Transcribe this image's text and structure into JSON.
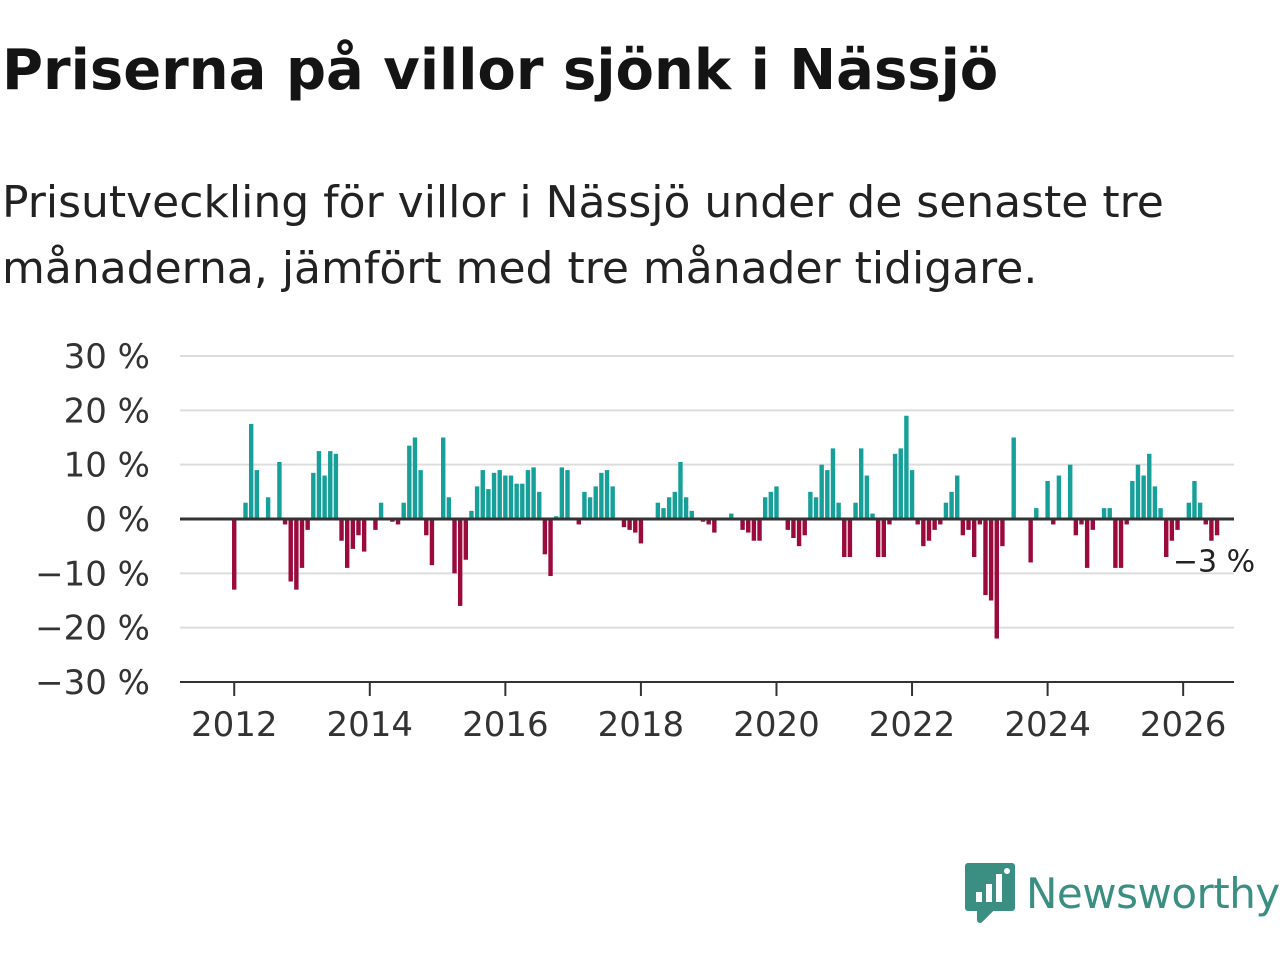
{
  "title": "Priserna på villor sjönk i Nässjö",
  "subtitle": "Prisutveckling för villor i Nässjö under de senaste tre månaderna, jämfört med tre månader tidigare.",
  "brand": {
    "name": "Newsworthy",
    "color": "#3a8f82"
  },
  "colors": {
    "positive": "#17a09a",
    "negative": "#9b0a3c",
    "grid": "#dddddd",
    "axis": "#333333"
  },
  "chart_data": {
    "type": "bar",
    "title": "Priserna på villor sjönk i Nässjö",
    "xlabel": "",
    "ylabel": "",
    "ylim": [
      -30,
      30
    ],
    "xlim": [
      2011.2,
      2026.75
    ],
    "y_ticks": [
      30,
      20,
      10,
      0,
      -10,
      -20,
      -30
    ],
    "y_tick_labels": [
      "30 %",
      "20 %",
      "10 %",
      "0 %",
      "−10 %",
      "−20 %",
      "−30 %"
    ],
    "x_ticks": [
      2012,
      2014,
      2016,
      2018,
      2020,
      2022,
      2024,
      2026
    ],
    "x_tick_labels": [
      "2012",
      "2014",
      "2016",
      "2018",
      "2020",
      "2022",
      "2024",
      "2026"
    ],
    "end_label": "−3 %",
    "grid": true,
    "start": {
      "year": 2012,
      "month": 1
    },
    "series": [
      {
        "name": "Prisutveckling",
        "unit": "%",
        "values": [
          -13,
          0,
          3,
          17.5,
          9,
          0,
          4,
          0,
          10.5,
          -1,
          -11.5,
          -13,
          -9,
          -2,
          8.5,
          12.5,
          8,
          12.5,
          12,
          -4,
          -9,
          -5.5,
          -3,
          -6,
          0,
          -2,
          3,
          0,
          -0.5,
          -1,
          3,
          13.5,
          15,
          9,
          -3,
          -8.5,
          0,
          15,
          4,
          -10,
          -16,
          -7.5,
          1.5,
          6,
          9,
          5.5,
          8.5,
          9,
          8,
          8,
          6.5,
          6.5,
          9,
          9.5,
          5,
          -6.5,
          -10.5,
          0.5,
          9.5,
          9,
          0,
          -1,
          5,
          4,
          6,
          8.5,
          9,
          6,
          0,
          -1.5,
          -2,
          -2.5,
          -4.5,
          0,
          0,
          3,
          2,
          4,
          5,
          10.5,
          4,
          1.5,
          0,
          -0.5,
          -1,
          -2.5,
          0,
          0,
          1,
          0,
          -2,
          -2.5,
          -4,
          -4,
          4,
          5,
          6,
          0,
          -2,
          -3.5,
          -5,
          -3,
          5,
          4,
          10,
          9,
          13,
          3,
          -7,
          -7,
          3,
          13,
          8,
          1,
          -7,
          -7,
          -1,
          12,
          13,
          19,
          9,
          -1,
          -5,
          -4,
          -2,
          -1,
          3,
          5,
          8,
          -3,
          -2,
          -7,
          -1,
          -14,
          -15,
          -22,
          -5,
          0,
          15,
          0,
          0,
          -8,
          2,
          0,
          7,
          -1,
          8,
          0,
          10,
          -3,
          -1,
          -9,
          -2,
          0,
          2,
          2,
          -9,
          -9,
          -1,
          7,
          10,
          8,
          12,
          6,
          2,
          -7,
          -4,
          -2,
          0,
          3,
          7,
          3,
          -1,
          -4,
          -3
        ]
      }
    ]
  }
}
